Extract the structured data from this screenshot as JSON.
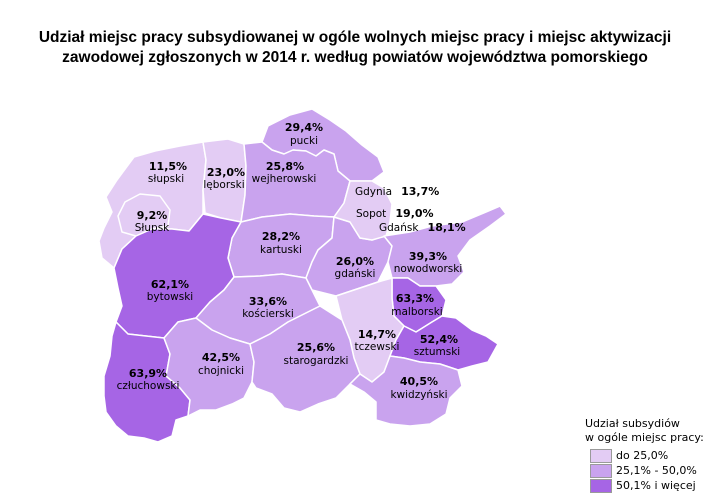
{
  "title_line1": "Udział miejsc pracy subsydiowanej w ogóle wolnych miejsc pracy i miejsc aktywizacji",
  "title_line2": "zawodowej zgłoszonych w 2014 r. według powiatów województwa pomorskiego",
  "colors": {
    "low": "#e3ccf4",
    "mid": "#c9a3ee",
    "high": "#a665e5"
  },
  "regions": [
    {
      "id": "pucki",
      "value": "29,4%",
      "name": "pucki",
      "class": "mid"
    },
    {
      "id": "slupski",
      "value": "11,5%",
      "name": "słupski",
      "class": "low"
    },
    {
      "id": "leborski",
      "value": "23,0%",
      "name": "lęborski",
      "class": "low"
    },
    {
      "id": "wejherowski",
      "value": "25,8%",
      "name": "wejherowski",
      "class": "mid"
    },
    {
      "id": "slupsk",
      "value": "9,2%",
      "name": "Słupsk",
      "class": "low"
    },
    {
      "id": "kartuski",
      "value": "28,2%",
      "name": "kartuski",
      "class": "mid"
    },
    {
      "id": "gdanski",
      "value": "26,0%",
      "name": "gdański",
      "class": "mid"
    },
    {
      "id": "nowodworski",
      "value": "39,3%",
      "name": "nowodworski",
      "class": "mid"
    },
    {
      "id": "bytowski",
      "value": "62,1%",
      "name": "bytowski",
      "class": "high"
    },
    {
      "id": "koscierski",
      "value": "33,6%",
      "name": "kościerski",
      "class": "mid"
    },
    {
      "id": "malborski",
      "value": "63,3%",
      "name": "malborski",
      "class": "high"
    },
    {
      "id": "tczewski",
      "value": "14,7%",
      "name": "tczewski",
      "class": "low"
    },
    {
      "id": "sztumski",
      "value": "52,4%",
      "name": "sztumski",
      "class": "high"
    },
    {
      "id": "czluchowski",
      "value": "63,9%",
      "name": "człuchowski",
      "class": "high"
    },
    {
      "id": "chojnicki",
      "value": "42,5%",
      "name": "chojnicki",
      "class": "mid"
    },
    {
      "id": "starogardzki",
      "value": "25,6%",
      "name": "starogardzki",
      "class": "mid"
    },
    {
      "id": "kwidzynski",
      "value": "40,5%",
      "name": "kwidzyński",
      "class": "mid"
    }
  ],
  "cities": [
    {
      "id": "gdynia",
      "name": "Gdynia",
      "value": "13,7%",
      "class": "low"
    },
    {
      "id": "sopot",
      "name": "Sopot",
      "value": "19,0%",
      "class": "low"
    },
    {
      "id": "gdansk",
      "name": "Gdańsk",
      "value": "18,1%",
      "class": "low"
    }
  ],
  "legend": {
    "title_line1": "Udział subsydiów",
    "title_line2": "w ogóle miejsc pracy:",
    "items": [
      {
        "label": "do 25,0%",
        "class": "low"
      },
      {
        "label": "25,1% - 50,0%",
        "class": "mid"
      },
      {
        "label": "50,1% i więcej",
        "class": "high"
      }
    ]
  }
}
